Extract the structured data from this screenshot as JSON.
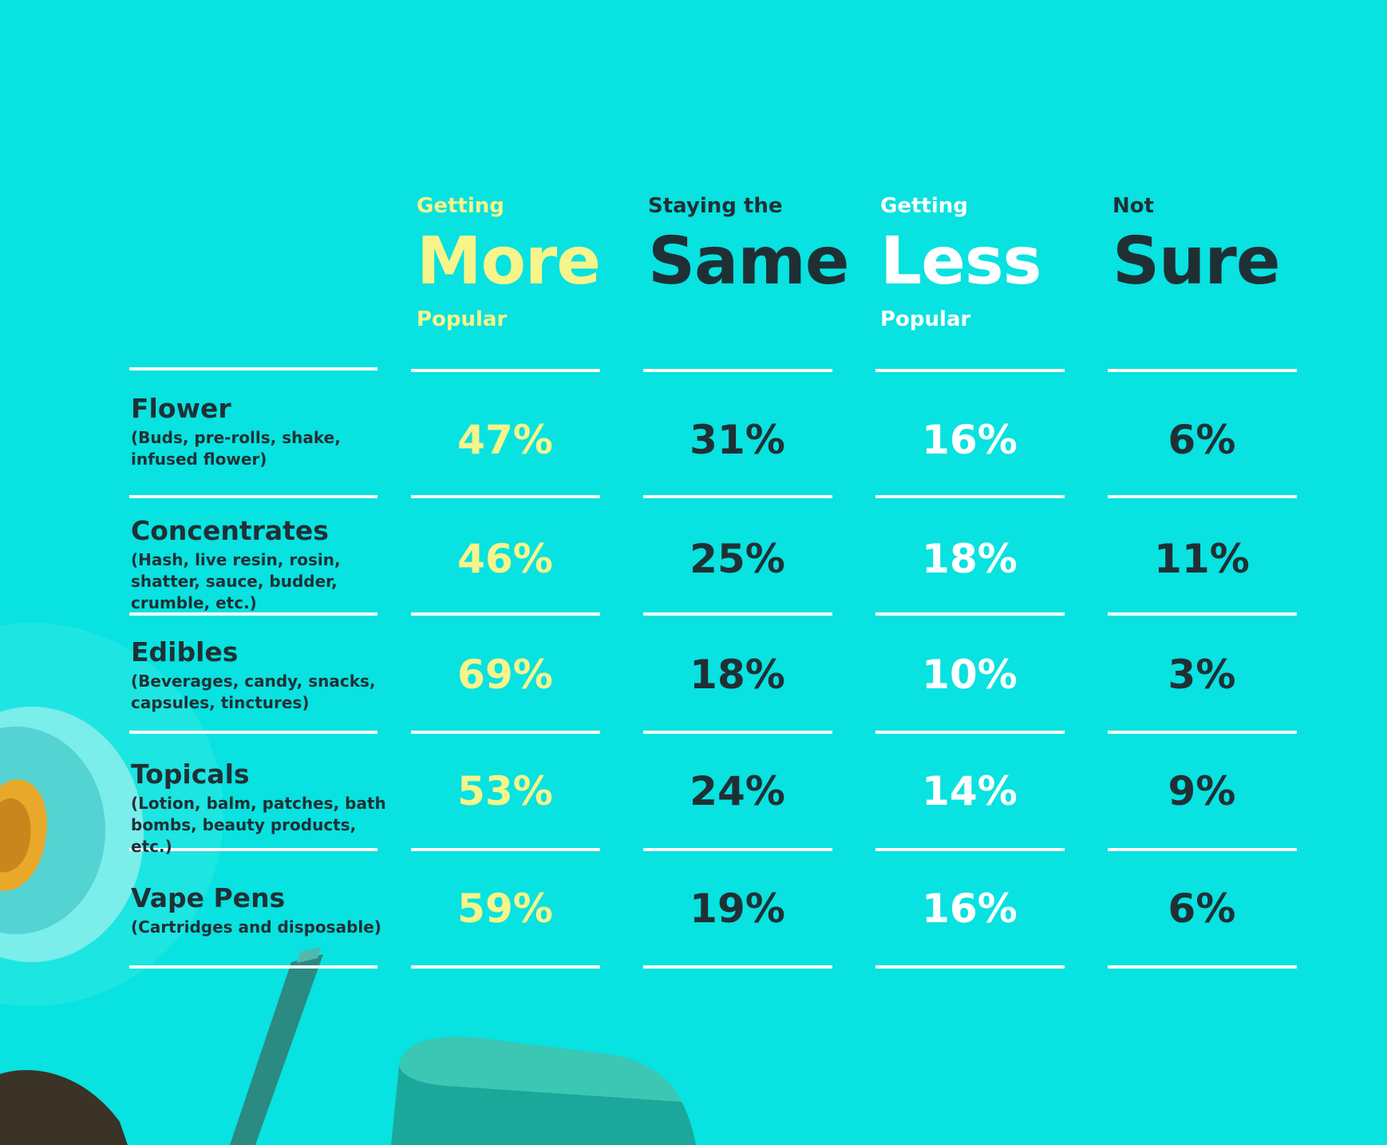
{
  "colors": {
    "background": "#08e2e0",
    "more": "#f7f48a",
    "same": "#1f3035",
    "less": "#ffffff",
    "not_sure": "#1f3035",
    "rule": "#ffffff"
  },
  "columns": [
    {
      "key": "more",
      "pre": "Getting",
      "main": "More",
      "post": "Popular"
    },
    {
      "key": "same",
      "pre": "Staying the",
      "main": "Same",
      "post": ""
    },
    {
      "key": "less",
      "pre": "Getting",
      "main": "Less",
      "post": "Popular"
    },
    {
      "key": "not_sure",
      "pre": "Not",
      "main": "Sure",
      "post": ""
    }
  ],
  "chart_data": {
    "type": "table",
    "columns": [
      "Getting More Popular",
      "Staying the Same",
      "Getting Less Popular",
      "Not Sure"
    ],
    "rows": [
      {
        "name": "Flower",
        "description": "(Buds, pre-rolls, shake, infused flower)",
        "values": [
          "47%",
          "31%",
          "16%",
          "6%"
        ]
      },
      {
        "name": "Concentrates",
        "description": "(Hash, live resin, rosin, shatter, sauce, budder, crumble, etc.)",
        "values": [
          "46%",
          "25%",
          "18%",
          "11%"
        ]
      },
      {
        "name": "Edibles",
        "description": "(Beverages, candy, snacks, capsules, tinctures)",
        "values": [
          "69%",
          "18%",
          "10%",
          "3%"
        ]
      },
      {
        "name": "Topicals",
        "description": "(Lotion, balm, patches, bath bombs, beauty products, etc.)",
        "values": [
          "53%",
          "24%",
          "14%",
          "9%"
        ]
      },
      {
        "name": "Vape Pens",
        "description": "(Cartridges and disposable)",
        "values": [
          "59%",
          "19%",
          "16%",
          "6%"
        ]
      }
    ]
  }
}
